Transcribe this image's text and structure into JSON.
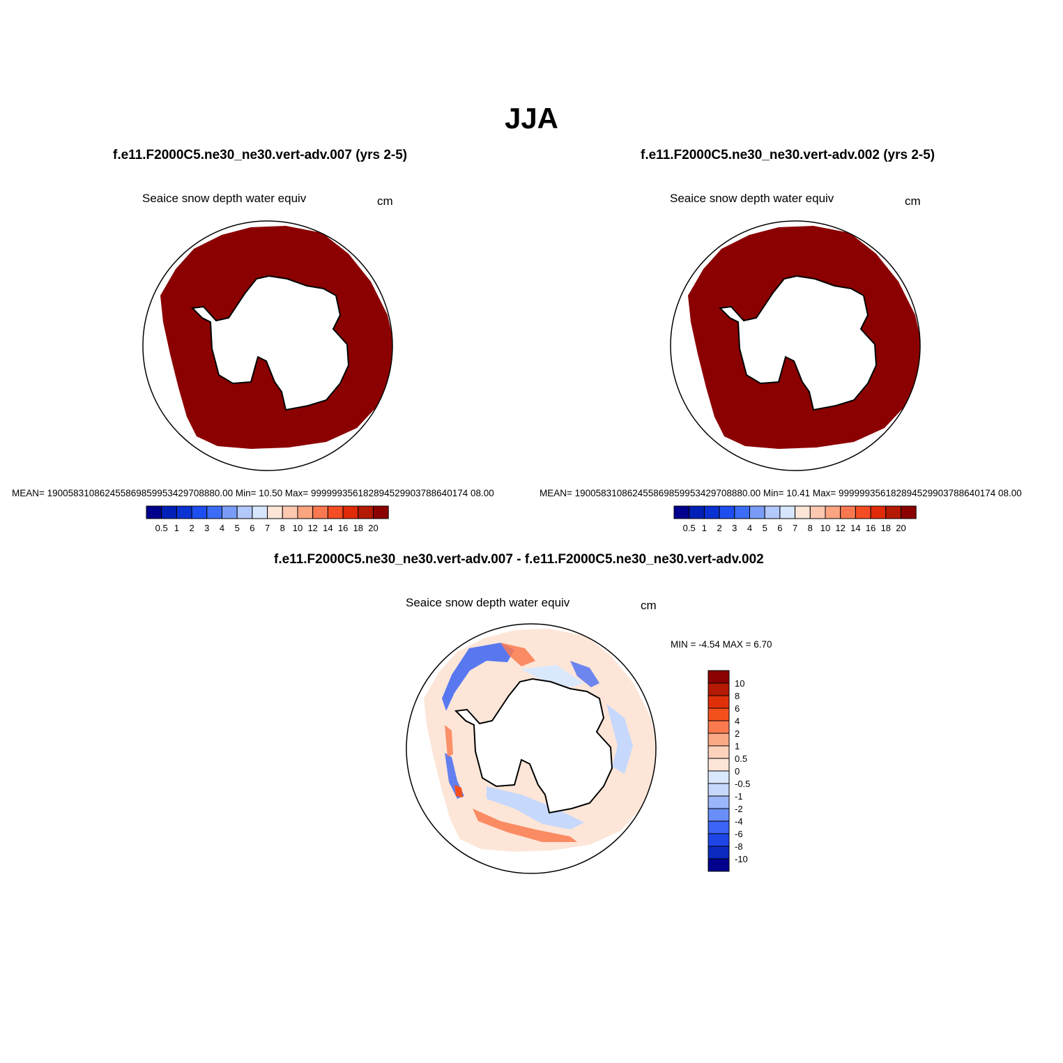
{
  "title": "JJA",
  "panels": [
    {
      "case": "f.e11.F2000C5.ne30_ne30.vert-adv.007 (yrs 2-5)",
      "variable": "Seaice snow depth water equiv",
      "units": "cm",
      "stats": "MEAN= 190058310862455869859953429708880.00  Min=  10.50  Max= 999999356182894529903788640174 08.00"
    },
    {
      "case": "f.e11.F2000C5.ne30_ne30.vert-adv.002 (yrs 2-5)",
      "variable": "Seaice snow depth water equiv",
      "units": "cm",
      "stats": "MEAN= 190058310862455869859953429708880.00  Min=  10.41  Max= 999999356182894529903788640174 08.00"
    }
  ],
  "diff": {
    "case": "f.e11.F2000C5.ne30_ne30.vert-adv.007 - f.e11.F2000C5.ne30_ne30.vert-adv.002",
    "variable": "Seaice snow depth water equiv",
    "units": "cm",
    "minmax": "MIN =  -4.54 MAX =   6.70"
  },
  "colorbar_abs": {
    "colors": [
      "#00008c",
      "#0020b8",
      "#0a32d2",
      "#1e4ef0",
      "#3c6cf5",
      "#7a9cf8",
      "#b3c8fb",
      "#d7e6fd",
      "#fde6d8",
      "#fcc8b0",
      "#fba480",
      "#fa7850",
      "#f44d24",
      "#e02b0a",
      "#b51a04",
      "#8b0000"
    ],
    "labels": [
      "0.5",
      "1",
      "2",
      "3",
      "4",
      "5",
      "6",
      "7",
      "8",
      "10",
      "12",
      "14",
      "16",
      "18",
      "20"
    ]
  },
  "colorbar_diff": {
    "colors": [
      "#00008c",
      "#0a2ac0",
      "#1e46e6",
      "#3c64f5",
      "#6a8ef8",
      "#9cb6fa",
      "#c6d8fc",
      "#dae8fd",
      "#fde6d8",
      "#fcd2bc",
      "#fbaa86",
      "#fa7a4e",
      "#f4501e",
      "#e0300a",
      "#b51a04",
      "#8b0000"
    ],
    "labels": [
      "10",
      "8",
      "6",
      "4",
      "2",
      "1",
      "0.5",
      "0",
      "-0.5",
      "-1",
      "-2",
      "-4",
      "-6",
      "-8",
      "-10"
    ]
  }
}
